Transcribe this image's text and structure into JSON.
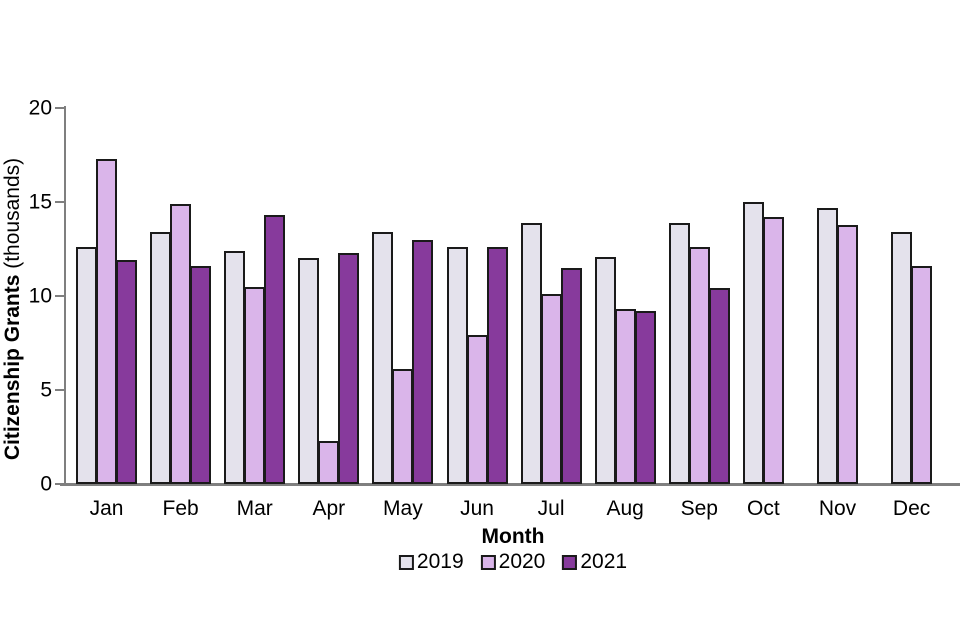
{
  "chart_data": {
    "type": "bar",
    "title": "",
    "xlabel": "Month",
    "ylabel_bold": "Citizenship Grants",
    "ylabel_unit": "(thousands)",
    "ylim": [
      0,
      20
    ],
    "yticks": [
      0,
      5,
      10,
      15,
      20
    ],
    "grid": false,
    "legend_position": "bottom",
    "categories": [
      "Jan",
      "Feb",
      "Mar",
      "Apr",
      "May",
      "Jun",
      "Jul",
      "Aug",
      "Sep",
      "Oct",
      "Nov",
      "Dec"
    ],
    "series": [
      {
        "name": "2019",
        "color": "#e4e2ec",
        "values": [
          12.6,
          13.4,
          12.4,
          12.0,
          13.4,
          12.6,
          13.9,
          12.1,
          13.9,
          15.0,
          14.7,
          13.4
        ]
      },
      {
        "name": "2020",
        "color": "#dab5ea",
        "values": [
          17.3,
          14.9,
          10.5,
          2.3,
          6.1,
          7.9,
          10.1,
          9.3,
          12.6,
          14.2,
          13.8,
          11.6
        ]
      },
      {
        "name": "2021",
        "color": "#873a9c",
        "values": [
          11.9,
          11.6,
          14.3,
          12.3,
          13.0,
          12.6,
          11.5,
          9.2,
          10.4,
          null,
          null,
          null
        ]
      }
    ]
  },
  "colors": {
    "axis": "#7f7f7f",
    "bar_border": "#1a1a1a",
    "text": "#000000",
    "background": "#ffffff"
  }
}
